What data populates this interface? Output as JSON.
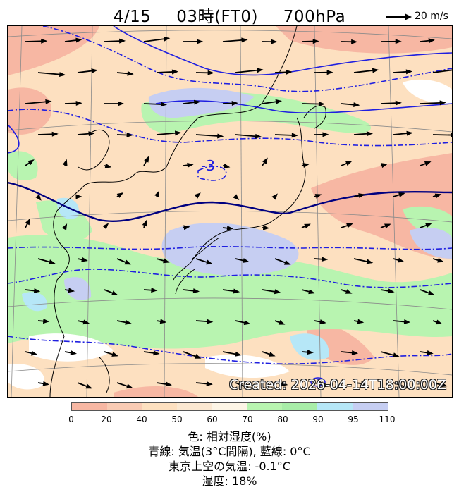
{
  "header": {
    "date": "4/15",
    "time": "03時(FT0)",
    "level": "700hPa"
  },
  "wind_reference": {
    "label": "20 m/s"
  },
  "map": {
    "contour_label": "-3",
    "low_label": "-3",
    "created_stamp": "Created: 2026-04-14T18:00:00Z",
    "colors": {
      "dry": "#f7b7a3",
      "moderate": "#fde0c0",
      "humid": "#b8f4b0",
      "wet": "#b6e7f7",
      "saturated": "#c6cef2",
      "temp_line": "#1f1fe0",
      "zero_line": "#000080"
    }
  },
  "colorbar": {
    "ticks": [
      "0",
      "20",
      "40",
      "50",
      "60",
      "70",
      "80",
      "90",
      "95",
      "110"
    ],
    "colors": [
      "#f7b7a3",
      "#f9cbb4",
      "#fde0c0",
      "#fbe8d2",
      "#fdf5e6",
      "#b8f4b0",
      "#a8eda8",
      "#b6e7f7",
      "#c6cef2"
    ]
  },
  "legend": {
    "line1": "色: 相対湿度(%)",
    "line2": "青線: 気温(3°C間隔), 藍線: 0°C",
    "line3": "東京上空の気温: -0.1°C",
    "line4": "湿度: 18%"
  }
}
